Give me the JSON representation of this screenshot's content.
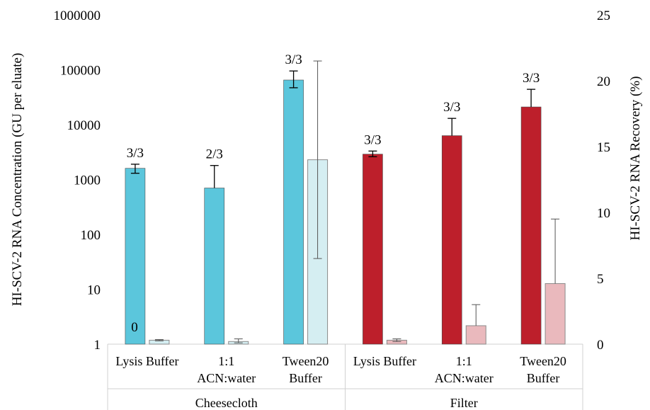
{
  "chart_data": {
    "type": "bar",
    "groups": [
      {
        "name": "Cheesecloth",
        "categories": [
          [
            "Lysis Buffer"
          ],
          [
            "1:1",
            "ACN:water"
          ],
          [
            "Tween20",
            "Buffer"
          ]
        ]
      },
      {
        "name": "Filter",
        "categories": [
          [
            "Lysis Buffer"
          ],
          [
            "1:1",
            "ACN:water"
          ],
          [
            "Tween20",
            "Buffer"
          ]
        ]
      }
    ],
    "y_left": {
      "label": "HI-SCV-2 RNA Concentration (GU per eluate)",
      "scale": "log",
      "ylim": [
        1,
        1000000
      ],
      "ticks": [
        "1",
        "10",
        "100",
        "1000",
        "10000",
        "100000",
        "1000000"
      ]
    },
    "y_right": {
      "label": "HI-SCV-2 RNA Recovery (%)",
      "scale": "linear",
      "ylim": [
        0,
        25
      ],
      "ticks": [
        "0",
        "5",
        "10",
        "15",
        "20",
        "25"
      ]
    },
    "series": [
      {
        "axis": "left",
        "colors": [
          "#5bc6dc",
          "#5bc6dc",
          "#5bc6dc",
          "#bd1f2b",
          "#bd1f2b",
          "#bd1f2b"
        ],
        "values": [
          1600,
          700,
          65000,
          2900,
          6300,
          21000
        ],
        "err_low": [
          1300,
          0,
          47000,
          2600,
          0,
          0
        ],
        "err_high": [
          1900,
          1800,
          95000,
          3300,
          13000,
          44000
        ],
        "annotations": [
          "3/3",
          "2/3",
          "3/3",
          "3/3",
          "3/3",
          "3/3"
        ]
      },
      {
        "axis": "right",
        "colors": [
          "#d5eef2",
          "#d5eef2",
          "#d5eef2",
          "#eab9bd",
          "#eab9bd",
          "#eab9bd"
        ],
        "values": [
          0.3,
          0.2,
          14,
          0.3,
          1.4,
          4.6
        ],
        "err_low": [
          0.25,
          0.1,
          6.5,
          0.2,
          0,
          0
        ],
        "err_high": [
          0.35,
          0.4,
          21.5,
          0.4,
          3.0,
          9.5
        ],
        "annotations": []
      }
    ],
    "extra_labels": [
      "0"
    ]
  }
}
